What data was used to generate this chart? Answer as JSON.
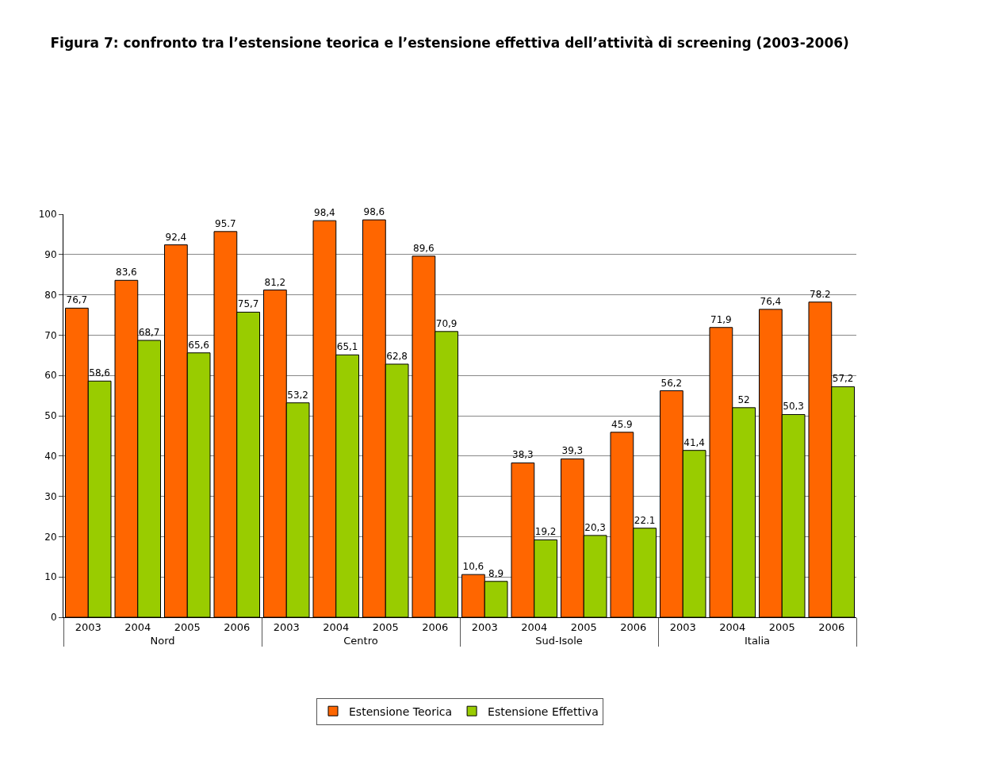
{
  "chart_data": {
    "type": "bar",
    "title": "Figura 7: confronto tra l’estensione teorica e l’estensione effettiva dell’attività di screening (2003-2006)",
    "categories": [
      "2003",
      "2004",
      "2005",
      "2006",
      "2003",
      "2004",
      "2005",
      "2006",
      "2003",
      "2004",
      "2005",
      "2006",
      "2003",
      "2004",
      "2005",
      "2006"
    ],
    "annotations": [
      "Nord",
      "Centro",
      "Sud-Isole",
      "Italia"
    ],
    "series": [
      {
        "name": "Estensione Teorica",
        "color": "#ff6600",
        "values": [
          76.7,
          83.6,
          92.4,
          95.7,
          81.2,
          98.4,
          98.6,
          89.6,
          10.6,
          38.3,
          39.3,
          45.9,
          56.2,
          71.9,
          76.4,
          78.2
        ],
        "value_labels": [
          "76,7",
          "83,6",
          "92,4",
          "95.7",
          "81,2",
          "98,4",
          "98,6",
          "89,6",
          "10,6",
          "38,3",
          "39,3",
          "45.9",
          "56,2",
          "71,9",
          "76,4",
          "78.2"
        ]
      },
      {
        "name": "Estensione Effettiva",
        "color": "#99cc00",
        "values": [
          58.6,
          68.7,
          65.6,
          75.7,
          53.2,
          65.1,
          62.8,
          70.9,
          8.9,
          19.2,
          20.3,
          22.1,
          41.4,
          52,
          50.3,
          57.2
        ],
        "value_labels": [
          "58,6",
          "68,7",
          "65,6",
          "75,7",
          "53,2",
          "65,1",
          "62,8",
          "70,9",
          "8,9",
          "19,2",
          "20,3",
          "22.1",
          "41,4",
          "52",
          "50,3",
          "57,2"
        ]
      }
    ],
    "ylim": [
      0,
      100
    ],
    "yticks": [
      0,
      10,
      20,
      30,
      40,
      50,
      60,
      70,
      80,
      90,
      100
    ],
    "grid": "y",
    "legend": "bottom"
  }
}
